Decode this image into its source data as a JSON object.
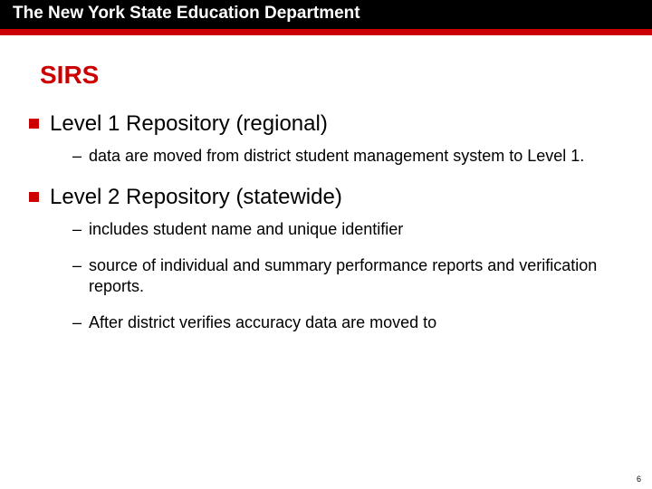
{
  "header": {
    "title": "The New York State Education Department"
  },
  "slide": {
    "title": "SIRS",
    "sections": [
      {
        "heading": "Level 1 Repository (regional)",
        "items": [
          "data are moved from district student management system to Level 1."
        ]
      },
      {
        "heading": "Level 2 Repository (statewide)",
        "items": [
          "includes student name and unique identifier",
          "source of individual and summary performance reports and verification reports.",
          "After district verifies accuracy data are moved to"
        ]
      }
    ],
    "page_number": "6"
  },
  "colors": {
    "accent": "#cc0000",
    "header_bg": "#000000",
    "text": "#000000",
    "bg": "#ffffff"
  }
}
